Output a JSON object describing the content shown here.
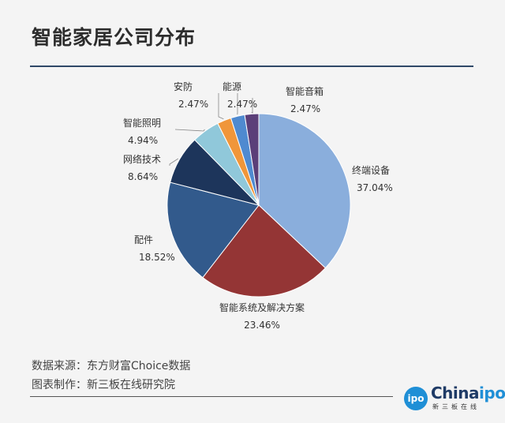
{
  "header": {
    "title": "智能家居公司分布"
  },
  "footer": {
    "source": "数据来源：东方财富Choice数据",
    "maker": "图表制作：新三板在线研究院"
  },
  "brand": {
    "logo_badge": "ipo",
    "logo_word_main": "China",
    "logo_word_accent": "ipo",
    "logo_sub": "新三板在线"
  },
  "chart_data": {
    "type": "pie",
    "title": "智能家居公司分布",
    "slices": [
      {
        "label": "终端设备",
        "value": 37.04,
        "value_text": "37.04%",
        "color": "#8aaedc"
      },
      {
        "label": "智能系统及解决方案",
        "value": 23.46,
        "value_text": "23.46%",
        "color": "#943535"
      },
      {
        "label": "配件",
        "value": 18.52,
        "value_text": "18.52%",
        "color": "#325a8c"
      },
      {
        "label": "网络技术",
        "value": 8.64,
        "value_text": "8.64%",
        "color": "#1d355b"
      },
      {
        "label": "智能照明",
        "value": 4.94,
        "value_text": "4.94%",
        "color": "#90c8da"
      },
      {
        "label": "安防",
        "value": 2.47,
        "value_text": "2.47%",
        "color": "#f0963a"
      },
      {
        "label": "能源",
        "value": 2.47,
        "value_text": "2.47%",
        "color": "#4f8ad0"
      },
      {
        "label": "智能音箱",
        "value": 2.47,
        "value_text": "2.47%",
        "color": "#5b3f79"
      }
    ],
    "legend": "none"
  }
}
